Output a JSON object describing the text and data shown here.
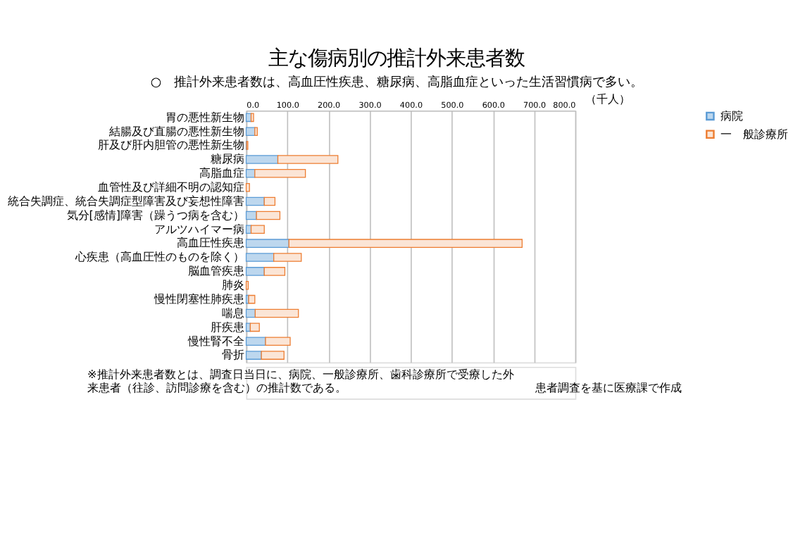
{
  "chart_data": {
    "type": "bar",
    "orientation": "horizontal",
    "stacked": true,
    "title": "主な傷病別の推計外来患者数",
    "subtitle": "○　推計外来患者数は、高血圧性疾患、糖尿病、高脂血症といった生活習慣病で多い。",
    "xlabel": "（千人）",
    "categories": [
      "胃の悪性新生物",
      "結腸及び直腸の悪性新生物",
      "肝及び肝内胆管の悪性新生物",
      "糖尿病",
      "高脂血症",
      "血管性及び詳細不明の認知症",
      "統合失調症、統合失調症型障害及び妄想性障害",
      "気分[感情]障害（躁うつ病を含む）",
      "アルツハイマー病",
      "高血圧性疾患",
      "心疾患（高血圧性のものを除く）",
      "脳血管疾患",
      "肺炎",
      "慢性閉塞性肺疾患",
      "喘息",
      "肝疾患",
      "慢性腎不全",
      "骨折"
    ],
    "series": [
      {
        "name": "病院",
        "color": "#bdd7ee",
        "values": [
          12,
          21,
          1,
          77,
          21,
          null,
          44,
          25,
          12,
          104,
          67,
          44,
          null,
          6,
          22,
          10,
          47,
          37
        ]
      },
      {
        "name": "一　般診療所",
        "color": "#fbe5d6",
        "values": [
          6,
          6,
          3,
          146,
          123,
          8,
          26,
          57,
          32,
          567,
          67,
          50,
          5,
          15,
          105,
          22,
          60,
          55
        ]
      }
    ],
    "xlim": [
      0,
      800
    ],
    "xticks": [
      {
        "value": 0,
        "label": "0.0"
      },
      {
        "value": 100,
        "label": "100.0"
      },
      {
        "value": 200,
        "label": "200.0"
      },
      {
        "value": 300,
        "label": "300.0"
      },
      {
        "value": 400,
        "label": "400.0"
      },
      {
        "value": 500,
        "label": "500.0"
      },
      {
        "value": 600,
        "label": "600.0"
      },
      {
        "value": 700,
        "label": "700.0"
      },
      {
        "value": 800,
        "label": "800.0"
      }
    ],
    "grid": "x",
    "legend": "right",
    "annotations": [
      "※推計外来患者数とは、調査日当日に、病院、一般診療所、歯科診療所で受療した外来患者（往診、訪問診療を含む）の推計数である。",
      "患者調査を基に医療課で作成"
    ]
  }
}
